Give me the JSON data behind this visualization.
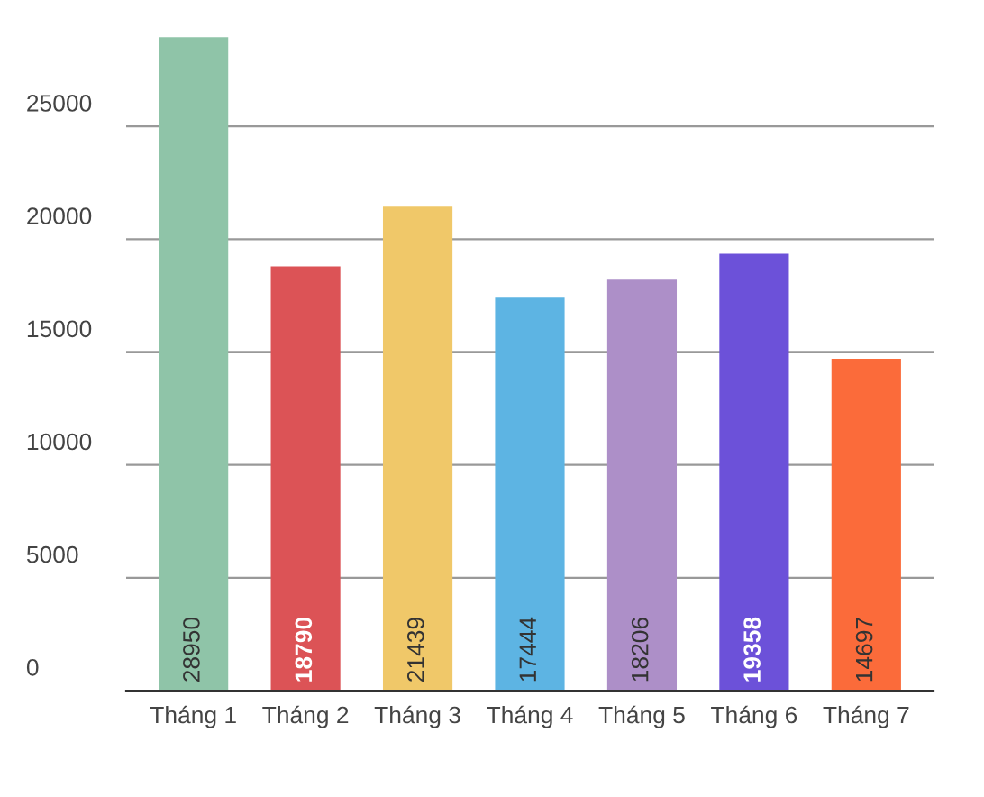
{
  "chart_data": {
    "type": "bar",
    "categories": [
      "Tháng 1",
      "Tháng 2",
      "Tháng 3",
      "Tháng 4",
      "Tháng 5",
      "Tháng 6",
      "Tháng 7"
    ],
    "values": [
      28950,
      18790,
      21439,
      17444,
      18206,
      19358,
      14697
    ],
    "colors": [
      "#8fc4a8",
      "#dc5356",
      "#f0c869",
      "#5db4e3",
      "#ad8fc8",
      "#6c51d9",
      "#fb6b3a"
    ],
    "ylim": [
      0,
      29000
    ],
    "yticks": [
      0,
      5000,
      10000,
      15000,
      20000,
      25000
    ],
    "grid": "y",
    "legend": false,
    "data_labels": true
  }
}
